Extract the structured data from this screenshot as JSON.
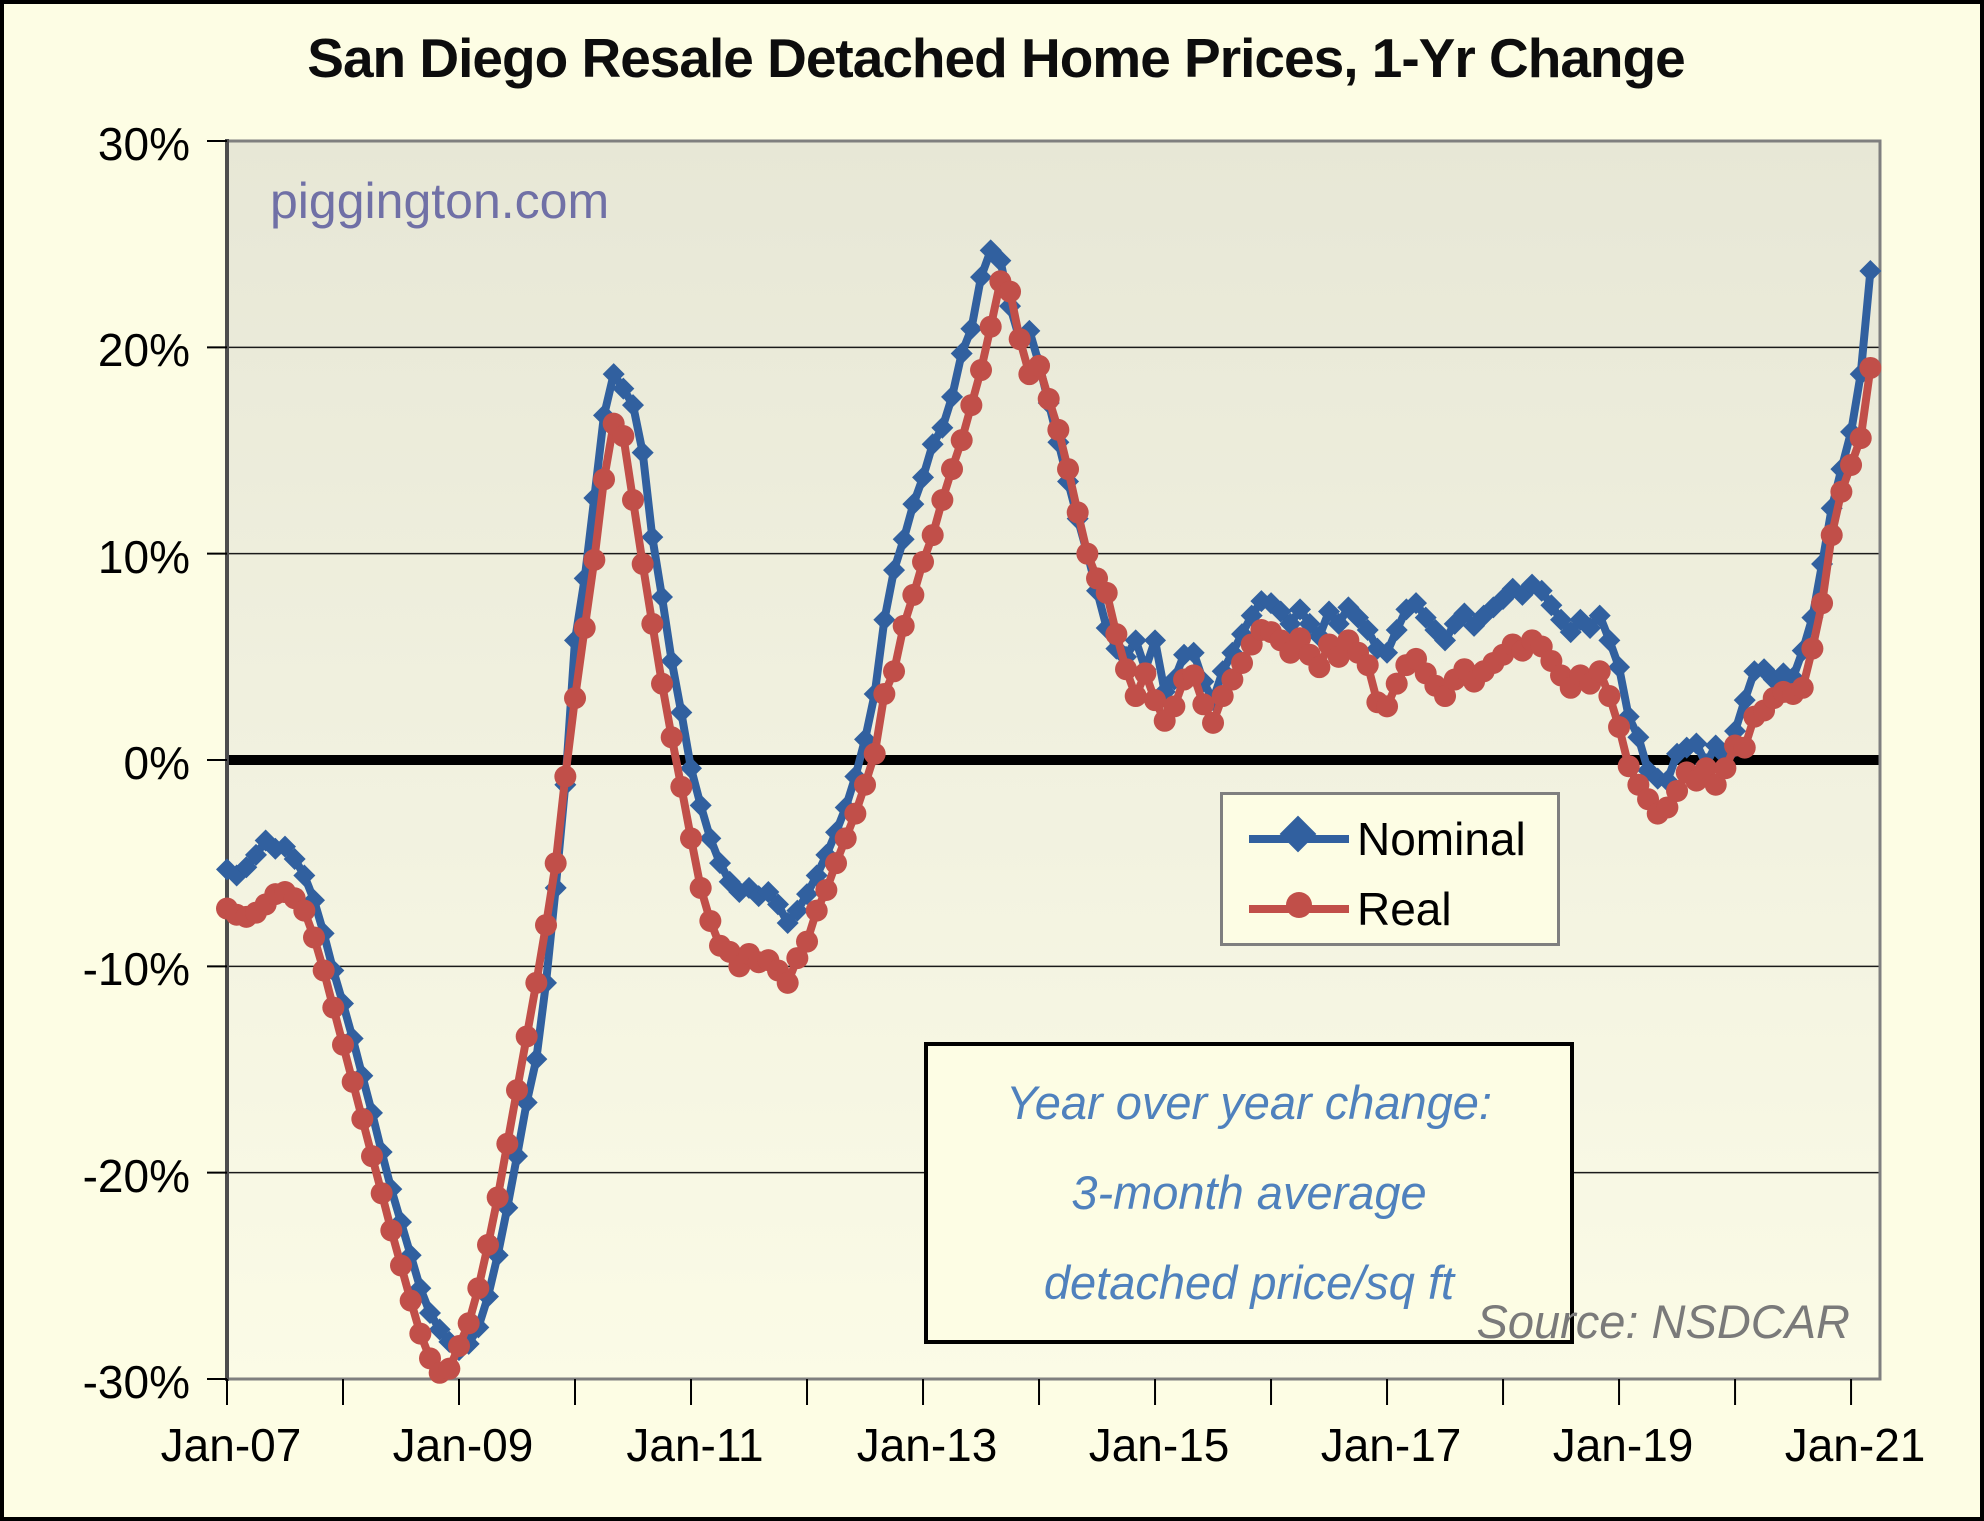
{
  "title": "San Diego Resale Detached Home Prices, 1-Yr Change",
  "watermark": "piggington.com",
  "source_note": "Source: NSDCAR",
  "annotation": {
    "text_color": "#4F81BD",
    "lines": [
      "Year over year change:",
      "3-month average",
      "detached price/sq ft"
    ]
  },
  "legend": {
    "items": [
      {
        "label": "Nominal",
        "color": "#31609F",
        "marker": "diamond"
      },
      {
        "label": "Real",
        "color": "#C14F49",
        "marker": "circle"
      }
    ]
  },
  "colors": {
    "page_background": "#FDFDE4",
    "plot_background_top": "#E7E7D6",
    "plot_background_bottom": "#FBFBE6",
    "plot_border": "#7F7F7F",
    "gridline": "#1a1a1a",
    "zero_line": "#000000",
    "nominal_blue": "#31609F",
    "real_red": "#C14F49",
    "watermark_purple": "#7070A6",
    "annotation_blue": "#4F81BD",
    "source_gray": "#7A7A7A"
  },
  "chart_data": {
    "type": "line",
    "title": "San Diego Resale Detached Home Prices, 1-Yr Change",
    "xlabel": "",
    "ylabel": "",
    "ylim": [
      -30,
      30
    ],
    "grid": true,
    "legend_position": "middle-right",
    "x_start": "Jan-07",
    "x_end": "Mar-21",
    "x_frequency": "monthly",
    "points_per_series": 171,
    "y_ticks": [
      {
        "value": 30,
        "label": "30%"
      },
      {
        "value": 20,
        "label": "20%"
      },
      {
        "value": 10,
        "label": "10%"
      },
      {
        "value": 0,
        "label": "0%"
      },
      {
        "value": -10,
        "label": "-10%"
      },
      {
        "value": -20,
        "label": "-20%"
      },
      {
        "value": -30,
        "label": "-30%"
      }
    ],
    "x_major_ticks": [
      {
        "month_index": 0,
        "label": "Jan-07"
      },
      {
        "month_index": 24,
        "label": "Jan-09"
      },
      {
        "month_index": 48,
        "label": "Jan-11"
      },
      {
        "month_index": 72,
        "label": "Jan-13"
      },
      {
        "month_index": 96,
        "label": "Jan-15"
      },
      {
        "month_index": 120,
        "label": "Jan-17"
      },
      {
        "month_index": 144,
        "label": "Jan-19"
      },
      {
        "month_index": 168,
        "label": "Jan-21"
      }
    ],
    "x_minor_tick_month_indices": [
      0,
      12,
      24,
      36,
      48,
      60,
      72,
      84,
      96,
      108,
      120,
      132,
      144,
      156,
      168
    ],
    "series": [
      {
        "name": "Nominal",
        "color": "#31609F",
        "marker": "diamond",
        "values": [
          -5.3,
          -5.6,
          -5.2,
          -4.6,
          -3.9,
          -4.3,
          -4.2,
          -4.8,
          -5.6,
          -6.8,
          -8.4,
          -10.2,
          -11.8,
          -13.5,
          -15.3,
          -17.1,
          -19.0,
          -20.8,
          -22.4,
          -24.0,
          -25.6,
          -26.8,
          -27.6,
          -28.2,
          -28.6,
          -28.3,
          -27.5,
          -26.0,
          -24.0,
          -21.7,
          -19.2,
          -16.6,
          -14.5,
          -10.8,
          -6.2,
          -1.2,
          5.8,
          8.8,
          12.7,
          16.7,
          18.7,
          18.0,
          17.2,
          14.9,
          10.8,
          7.9,
          4.8,
          2.3,
          -0.4,
          -2.2,
          -3.8,
          -5.0,
          -5.9,
          -6.4,
          -6.2,
          -6.6,
          -6.4,
          -7.0,
          -7.9,
          -7.3,
          -6.5,
          -5.6,
          -4.6,
          -3.5,
          -2.3,
          -0.8,
          1.0,
          3.2,
          6.8,
          9.2,
          10.7,
          12.4,
          13.7,
          15.3,
          16.1,
          17.6,
          19.7,
          20.9,
          23.4,
          24.7,
          24.2,
          22.0,
          20.4,
          20.8,
          19.2,
          17.3,
          15.4,
          13.5,
          11.7,
          10.0,
          8.2,
          6.4,
          5.4,
          5.0,
          5.8,
          4.4,
          5.8,
          3.3,
          3.9,
          5.1,
          5.2,
          3.8,
          2.9,
          4.3,
          5.2,
          6.1,
          7.0,
          7.7,
          7.6,
          7.2,
          6.6,
          7.3,
          6.6,
          6.0,
          7.2,
          6.6,
          7.4,
          6.9,
          6.3,
          5.4,
          5.2,
          6.3,
          7.3,
          7.6,
          6.9,
          6.3,
          5.8,
          6.6,
          7.1,
          6.5,
          7.0,
          7.4,
          7.8,
          8.3,
          8.0,
          8.5,
          8.2,
          7.5,
          6.8,
          6.2,
          6.8,
          6.4,
          7.0,
          5.8,
          4.5,
          2.1,
          1.1,
          -0.5,
          -0.9,
          -1.0,
          0.3,
          0.6,
          0.8,
          -0.2,
          0.7,
          0.2,
          1.4,
          2.9,
          4.3,
          4.4,
          3.9,
          4.2,
          4.0,
          5.3,
          6.9,
          9.5,
          12.2,
          14.1,
          15.9,
          18.7,
          23.7
        ]
      },
      {
        "name": "Real",
        "color": "#C14F49",
        "marker": "circle",
        "values": [
          -7.2,
          -7.5,
          -7.6,
          -7.4,
          -7.0,
          -6.5,
          -6.4,
          -6.7,
          -7.3,
          -8.6,
          -10.2,
          -12.0,
          -13.8,
          -15.6,
          -17.4,
          -19.2,
          -21.0,
          -22.8,
          -24.5,
          -26.2,
          -27.8,
          -29.0,
          -29.7,
          -29.5,
          -28.4,
          -27.3,
          -25.6,
          -23.5,
          -21.2,
          -18.6,
          -16.0,
          -13.4,
          -10.8,
          -8.0,
          -5.0,
          -0.8,
          3.0,
          6.4,
          9.7,
          13.6,
          16.3,
          15.7,
          12.6,
          9.5,
          6.6,
          3.7,
          1.1,
          -1.3,
          -3.8,
          -6.2,
          -7.8,
          -9.0,
          -9.3,
          -10.0,
          -9.4,
          -9.8,
          -9.7,
          -10.2,
          -10.8,
          -9.6,
          -8.8,
          -7.3,
          -6.3,
          -5.0,
          -3.8,
          -2.6,
          -1.2,
          0.3,
          3.2,
          4.3,
          6.5,
          8.0,
          9.6,
          10.9,
          12.6,
          14.1,
          15.5,
          17.2,
          18.9,
          21.0,
          23.2,
          22.7,
          20.4,
          18.7,
          19.1,
          17.5,
          16.0,
          14.1,
          12.0,
          10.0,
          8.8,
          8.1,
          6.1,
          4.4,
          3.1,
          4.2,
          2.9,
          1.9,
          2.6,
          3.9,
          4.1,
          2.7,
          1.8,
          3.1,
          3.9,
          4.7,
          5.6,
          6.3,
          6.2,
          5.8,
          5.2,
          5.9,
          5.1,
          4.5,
          5.6,
          5.0,
          5.8,
          5.2,
          4.6,
          2.8,
          2.6,
          3.7,
          4.6,
          4.9,
          4.2,
          3.6,
          3.1,
          3.9,
          4.4,
          3.8,
          4.3,
          4.7,
          5.1,
          5.6,
          5.3,
          5.8,
          5.5,
          4.8,
          4.1,
          3.5,
          4.1,
          3.7,
          4.3,
          3.1,
          1.6,
          -0.3,
          -1.2,
          -1.9,
          -2.6,
          -2.3,
          -1.5,
          -0.6,
          -1.0,
          -0.4,
          -1.2,
          -0.4,
          0.7,
          0.6,
          2.1,
          2.4,
          3.0,
          3.3,
          3.2,
          3.5,
          5.4,
          7.6,
          10.9,
          13.0,
          14.3,
          15.6,
          19.0
        ]
      }
    ]
  }
}
